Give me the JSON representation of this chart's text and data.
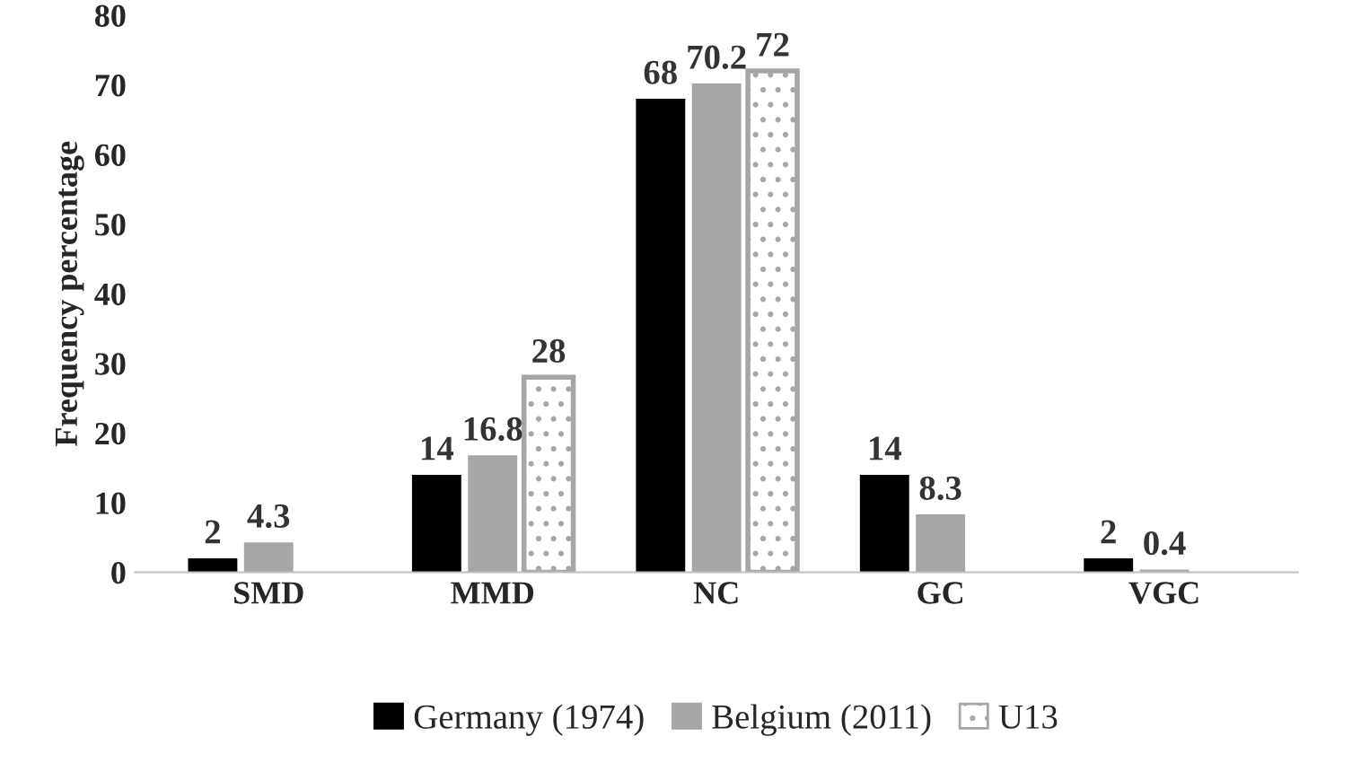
{
  "chart_data": {
    "type": "bar",
    "ylabel": "Frequency percentage",
    "categories": [
      "SMD",
      "MMD",
      "NC",
      "GC",
      "VGC"
    ],
    "series": [
      {
        "name": "Germany (1974)",
        "color": "#000000",
        "values": [
          2,
          14,
          68,
          14,
          2
        ]
      },
      {
        "name": "Belgium (2011)",
        "color": "#a6a6a6",
        "values": [
          4.3,
          16.8,
          70.2,
          8.3,
          0.4
        ]
      },
      {
        "name": "U13",
        "color": "#a6a6a6",
        "line_style": "dotted",
        "values": [
          null,
          28,
          72,
          null,
          null
        ]
      }
    ],
    "ylim": [
      0,
      80
    ],
    "yticks": [
      0,
      10,
      20,
      30,
      40,
      50,
      60,
      70,
      80
    ],
    "grid": false,
    "legend": "bottom",
    "data_labels": true
  }
}
